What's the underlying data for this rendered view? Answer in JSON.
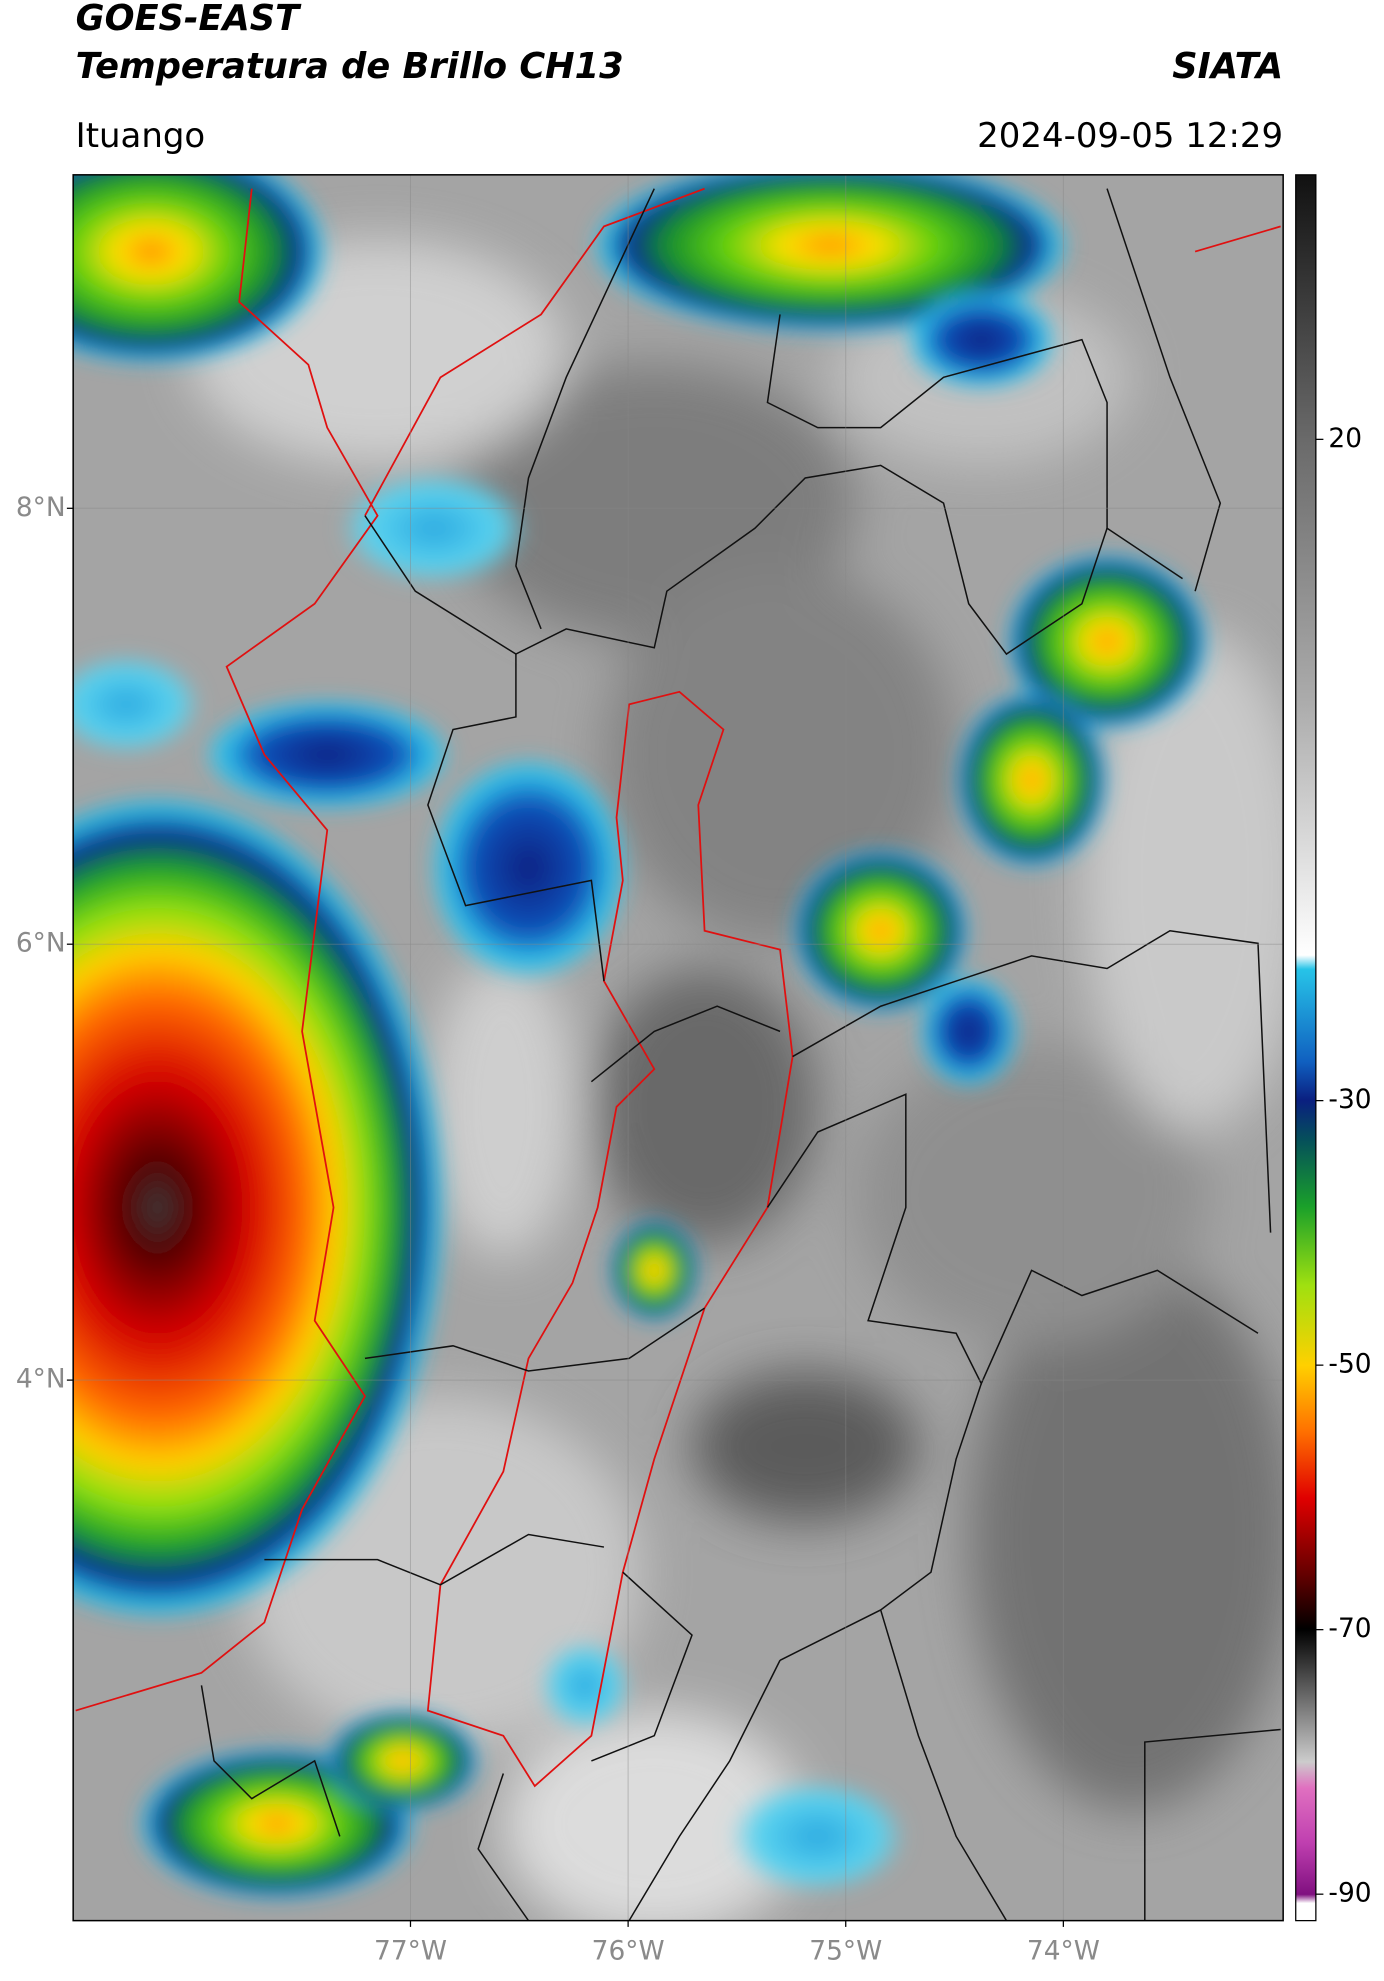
{
  "header": {
    "title": "GOES-EAST",
    "subtitle": "Temperatura de Brillo CH13",
    "source": "SIATA",
    "location": "Ituango",
    "datetime": "2024-09-05 12:29"
  },
  "map": {
    "xlim": [
      -78.55,
      -72.99
    ],
    "ylim": [
      1.52,
      9.53
    ],
    "xticks": [
      {
        "value": -77,
        "label": "77°W"
      },
      {
        "value": -76,
        "label": "76°W"
      },
      {
        "value": -75,
        "label": "75°W"
      },
      {
        "value": -74,
        "label": "74°W"
      }
    ],
    "yticks": [
      {
        "value": 8,
        "label": "8°N"
      },
      {
        "value": 6,
        "label": "6°N"
      },
      {
        "value": 4,
        "label": "4°N"
      }
    ],
    "grid": true
  },
  "colorbar": {
    "lim": [
      -92,
      40
    ],
    "ticks": [
      20,
      -30,
      -50,
      -70,
      -90
    ]
  }
}
